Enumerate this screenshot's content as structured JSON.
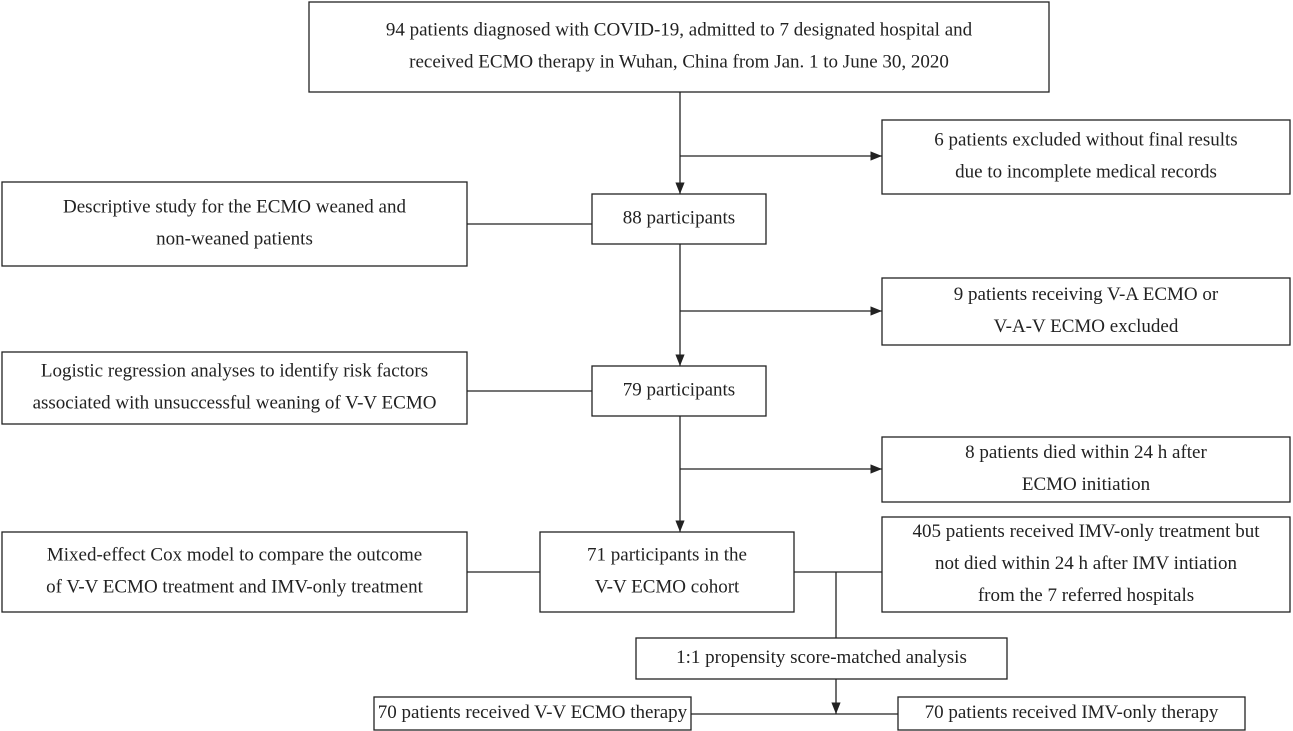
{
  "nodes": [
    {
      "lines": [
        "94 patients diagnosed with COVID-19, admitted to 7 designated hospital and",
        "received ECMO therapy in Wuhan, China from Jan. 1 to June 30, 2020"
      ]
    },
    {
      "lines": [
        "6 patients excluded without final results",
        "due to incomplete medical records"
      ]
    },
    {
      "lines": [
        "Descriptive study for the ECMO weaned and",
        "non-weaned patients"
      ]
    },
    {
      "lines": [
        "88 participants"
      ]
    },
    {
      "lines": [
        "9 patients receiving V-A ECMO or",
        "V-A-V ECMO excluded"
      ]
    },
    {
      "lines": [
        "Logistic regression analyses to identify risk factors",
        "associated with unsuccessful weaning of V-V ECMO"
      ]
    },
    {
      "lines": [
        "79 participants"
      ]
    },
    {
      "lines": [
        "8 patients died within 24 h after",
        "ECMO initiation"
      ]
    },
    {
      "lines": [
        "Mixed-effect Cox model to compare the outcome",
        "of V-V ECMO treatment and IMV-only treatment"
      ]
    },
    {
      "lines": [
        "71 participants in the",
        "V-V ECMO cohort"
      ]
    },
    {
      "lines": [
        "405 patients received IMV-only treatment but",
        "not died within 24 h after IMV intiation",
        "from the 7 referred hospitals"
      ]
    },
    {
      "lines": [
        "1:1 propensity score-matched analysis"
      ]
    },
    {
      "lines": [
        "70 patients received V-V ECMO therapy"
      ]
    },
    {
      "lines": [
        "70 patients received IMV-only therapy"
      ]
    }
  ]
}
